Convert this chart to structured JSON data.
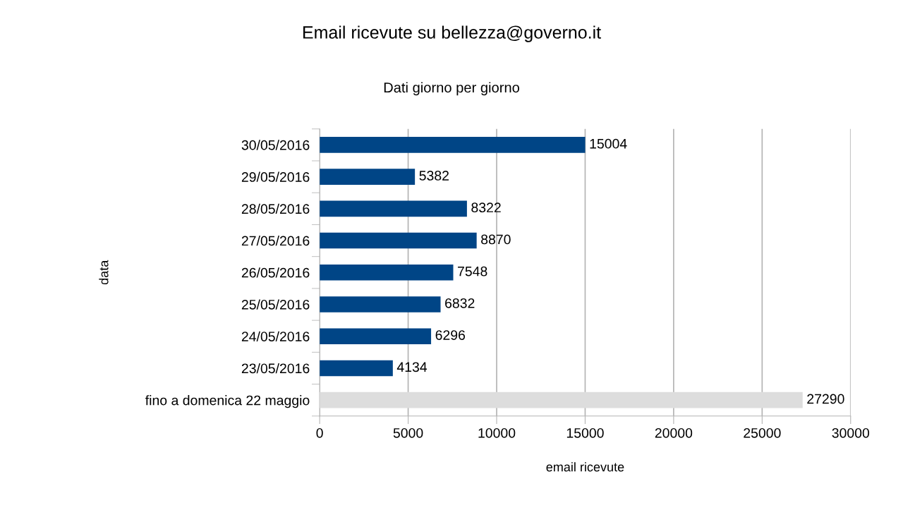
{
  "chart_data": {
    "type": "bar",
    "orientation": "horizontal",
    "title": "Email ricevute su bellezza@governo.it",
    "subtitle": "Dati giorno per giorno",
    "xlabel": "email ricevute",
    "ylabel": "data",
    "categories": [
      "30/05/2016",
      "29/05/2016",
      "28/05/2016",
      "27/05/2016",
      "26/05/2016",
      "25/05/2016",
      "24/05/2016",
      "23/05/2016",
      "fino a domenica 22 maggio"
    ],
    "values": [
      15004,
      5382,
      8322,
      8870,
      7548,
      6832,
      6296,
      4134,
      27290
    ],
    "colors": [
      "#004586",
      "#004586",
      "#004586",
      "#004586",
      "#004586",
      "#004586",
      "#004586",
      "#004586",
      "#dddddd"
    ],
    "xlim": [
      0,
      30000
    ],
    "xticks": [
      0,
      5000,
      10000,
      15000,
      20000,
      25000,
      30000
    ],
    "grid": "x",
    "data_labels": true
  }
}
